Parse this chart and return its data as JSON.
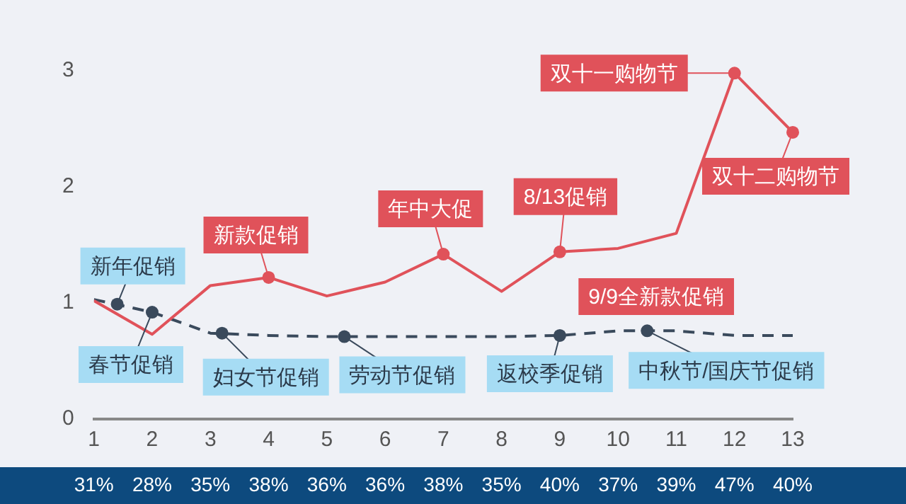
{
  "chart_data": {
    "type": "line",
    "x": [
      1,
      2,
      3,
      4,
      5,
      6,
      7,
      8,
      9,
      10,
      11,
      12,
      13
    ],
    "series": [
      {
        "color": "#e0525a",
        "values": [
          1.02,
          0.73,
          1.15,
          1.22,
          1.06,
          1.18,
          1.42,
          1.1,
          1.44,
          1.47,
          1.6,
          2.98,
          2.47
        ]
      },
      {
        "color": "#3a4a5c",
        "line_style": "dashed",
        "values": [
          1.03,
          0.92,
          0.74,
          0.72,
          0.71,
          0.71,
          0.71,
          0.71,
          0.72,
          0.76,
          0.76,
          0.72,
          0.72
        ]
      }
    ],
    "xlim": [
      1,
      13
    ],
    "xticks": [
      1,
      2,
      3,
      4,
      5,
      6,
      7,
      8,
      9,
      10,
      11,
      12,
      13
    ],
    "ylim": [
      0,
      3
    ],
    "yticks": [
      0,
      1,
      2,
      3
    ],
    "grid": false,
    "legend": false,
    "annotations": [
      {
        "text": "新年促销",
        "x": 1.4,
        "y": 0.99
      },
      {
        "text": "春节促销",
        "x": 2,
        "y": 0.92
      },
      {
        "text": "妇女节促销",
        "x": 3.2,
        "y": 0.74
      },
      {
        "text": "劳动节促销",
        "x": 5.3,
        "y": 0.71
      },
      {
        "text": "返校季促销",
        "x": 9,
        "y": 0.72
      },
      {
        "text": "中秋节/国庆节促销",
        "x": 10.5,
        "y": 0.76
      },
      {
        "text": "新款促销",
        "x": 4,
        "y": 1.22
      },
      {
        "text": "年中大促",
        "x": 7,
        "y": 1.42
      },
      {
        "text": "8/13促销",
        "x": 9,
        "y": 1.44
      },
      {
        "text": "9/9全新款促销",
        "x": 10,
        "y": 1.47
      },
      {
        "text": "双十一购物节",
        "x": 12,
        "y": 2.98
      },
      {
        "text": "双十二购物节",
        "x": 13,
        "y": 2.47
      },
      "31%",
      "28%",
      "35%",
      "38%",
      "36%",
      "36%",
      "38%",
      "35%",
      "40%",
      "37%",
      "39%",
      "47%",
      "40%"
    ]
  }
}
